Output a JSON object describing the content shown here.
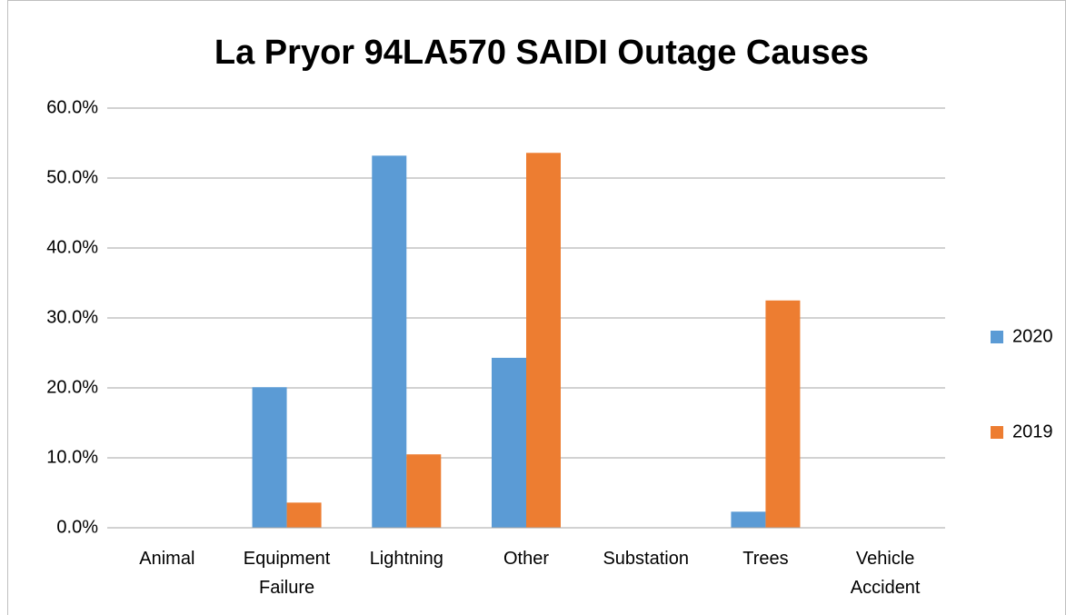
{
  "chart_data": {
    "type": "bar",
    "title": "La Pryor 94LA570 SAIDI Outage Causes",
    "categories": [
      "Animal",
      "Equipment Failure",
      "Lightning",
      "Other",
      "Substation",
      "Trees",
      "Vehicle Accident"
    ],
    "series": [
      {
        "name": "2020",
        "color": "#5b9bd5",
        "values": [
          0,
          20.1,
          53.2,
          24.3,
          0,
          2.3,
          0
        ]
      },
      {
        "name": "2019",
        "color": "#ed7d31",
        "values": [
          0,
          3.6,
          10.5,
          53.6,
          0,
          32.5,
          0
        ]
      }
    ],
    "ylim": [
      0,
      60
    ],
    "yticks": [
      {
        "value": 0,
        "label": "0.0%"
      },
      {
        "value": 10,
        "label": "10.0%"
      },
      {
        "value": 20,
        "label": "20.0%"
      },
      {
        "value": 30,
        "label": "30.0%"
      },
      {
        "value": 40,
        "label": "40.0%"
      },
      {
        "value": 50,
        "label": "50.0%"
      },
      {
        "value": 60,
        "label": "60.0%"
      }
    ],
    "grid": true,
    "legend": "right"
  }
}
